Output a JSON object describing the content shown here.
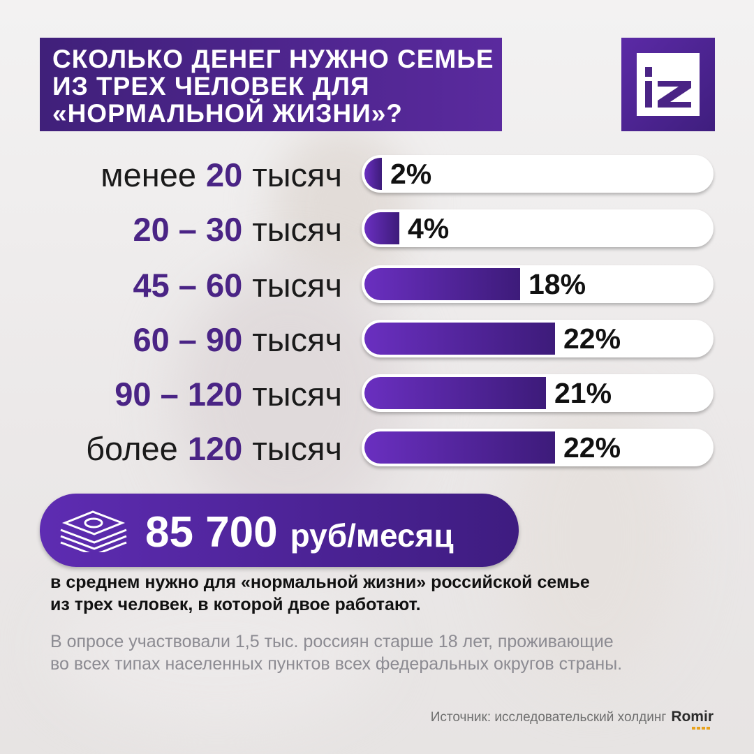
{
  "title_lines": [
    "СКОЛЬКО ДЕНЕГ НУЖНО СЕМЬЕ",
    "ИЗ ТРЕХ ЧЕЛОВЕК ДЛЯ",
    "«НОРМАЛЬНОЙ ЖИЗНИ»?"
  ],
  "logo": {
    "text": "iz",
    "color": "#4a2485"
  },
  "colors": {
    "accent": "#4a2485",
    "bar_start": "#6a2fc0",
    "bar_end": "#3d1b7a",
    "track": "#ffffff"
  },
  "chart_data": {
    "type": "bar",
    "orientation": "horizontal",
    "categories": [
      {
        "prefix": "менее",
        "range": "20",
        "suffix": "тысяч"
      },
      {
        "prefix": "",
        "range": "20 – 30",
        "suffix": "тысяч"
      },
      {
        "prefix": "",
        "range": "45 – 60",
        "suffix": "тысяч"
      },
      {
        "prefix": "",
        "range": "60 – 90",
        "suffix": "тысяч"
      },
      {
        "prefix": "",
        "range": "90 – 120",
        "suffix": "тысяч"
      },
      {
        "prefix": "более",
        "range": "120",
        "suffix": "тысяч"
      }
    ],
    "values": [
      2,
      4,
      18,
      22,
      21,
      22
    ],
    "value_labels": [
      "2%",
      "4%",
      "18%",
      "22%",
      "21%",
      "22%"
    ],
    "xlim": [
      0,
      100
    ],
    "grid": false,
    "legend": "none"
  },
  "summary": {
    "icon": "money-stack-icon",
    "amount": "85 700",
    "unit": "руб/месяц"
  },
  "description_lines": [
    "в среднем нужно для «нормальной жизни» российской семье",
    "из трех человек, в которой двое работают."
  ],
  "survey_lines": [
    "В опросе участвовали 1,5 тыс. россиян старше 18 лет, проживающие",
    "во всех типах населенных пунктов всех федеральных округов страны."
  ],
  "source": {
    "label": "Источник: исследовательский холдинг",
    "brand": "Romir"
  }
}
